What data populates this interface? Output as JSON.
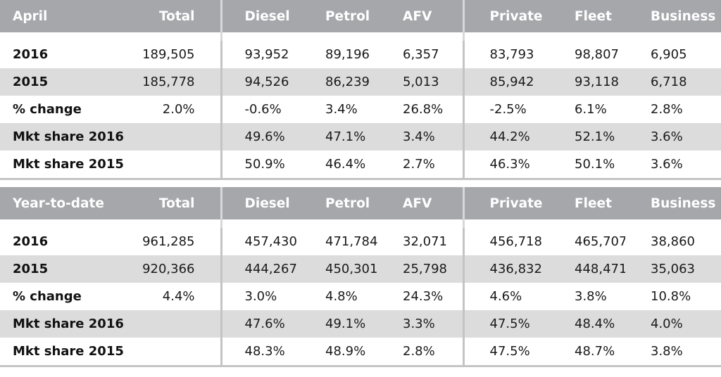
{
  "april": {
    "headers": [
      "April",
      "Total",
      "Diesel",
      "Petrol",
      "AFV",
      "Private",
      "Fleet",
      "Business"
    ],
    "rows": [
      {
        "label": "2016",
        "values": [
          "189,505",
          "93,952",
          "89,196",
          "6,357",
          "83,793",
          "98,807",
          "6,905"
        ]
      },
      {
        "label": "2015",
        "values": [
          "185,778",
          "94,526",
          "86,239",
          "5,013",
          "85,942",
          "93,118",
          "6,718"
        ]
      },
      {
        "label": "% change",
        "values": [
          "2.0%",
          "-0.6%",
          "3.4%",
          "26.8%",
          "-2.5%",
          "6.1%",
          "2.8%"
        ]
      },
      {
        "label": "Mkt share 2016",
        "values": [
          "",
          "49.6%",
          "47.1%",
          "3.4%",
          "44.2%",
          "52.1%",
          "3.6%"
        ]
      },
      {
        "label": "Mkt share 2015",
        "values": [
          "",
          "50.9%",
          "46.4%",
          "2.7%",
          "46.3%",
          "50.1%",
          "3.6%"
        ]
      }
    ]
  },
  "ytd": {
    "headers": [
      "Year-to-date",
      "Total",
      "Diesel",
      "Petrol",
      "AFV",
      "Private",
      "Fleet",
      "Business"
    ],
    "rows": [
      {
        "label": "2016",
        "values": [
          "961,285",
          "457,430",
          "471,784",
          "32,071",
          "456,718",
          "465,707",
          "38,860"
        ]
      },
      {
        "label": "2015",
        "values": [
          "920,366",
          "444,267",
          "450,301",
          "25,798",
          "436,832",
          "448,471",
          "35,063"
        ]
      },
      {
        "label": "% change",
        "values": [
          "4.4%",
          "3.0%",
          "4.8%",
          "24.3%",
          "4.6%",
          "3.8%",
          "10.8%"
        ]
      },
      {
        "label": "Mkt share 2016",
        "values": [
          "",
          "47.6%",
          "49.1%",
          "3.3%",
          "47.5%",
          "48.4%",
          "4.0%"
        ]
      },
      {
        "label": "Mkt share 2015",
        "values": [
          "",
          "48.3%",
          "48.9%",
          "2.8%",
          "47.5%",
          "48.7%",
          "3.8%"
        ]
      }
    ]
  }
}
